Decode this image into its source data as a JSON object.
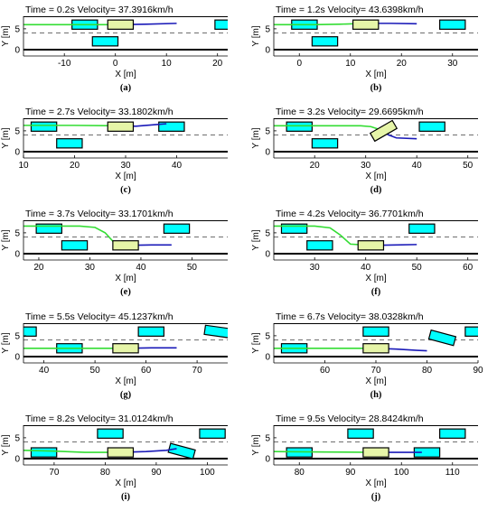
{
  "figure": {
    "y_range": [
      -1.5,
      8
    ],
    "xlabel": "X [m]",
    "ylabel": "Y [m]",
    "y_ticks": [
      0,
      5
    ],
    "road_edges": [
      0,
      8
    ],
    "lane_divider": 4,
    "colors": {
      "road_edge": "#000000",
      "divider": "#808080",
      "obstacle": "#00ffff",
      "ego": "#e6f5a8",
      "past_path": "#33dd33",
      "planned_path": "#1a1ab8"
    }
  },
  "chart_data": [
    {
      "label": "(a)",
      "title": "Time = 0.2s    Velocity= 37.3916km/h",
      "type": "scatter",
      "xlim": [
        -18,
        22
      ],
      "x_ticks": [
        -10,
        0,
        10,
        20
      ],
      "ego": {
        "x": 1,
        "y": 6,
        "angle": 0
      },
      "obstacles": [
        {
          "x": -6,
          "y": 6,
          "angle": 0
        },
        {
          "x": -2,
          "y": 2,
          "angle": 0
        },
        {
          "x": 22,
          "y": 6,
          "angle": 0
        }
      ],
      "past_path": [
        [
          -18,
          6
        ],
        [
          1,
          6
        ]
      ],
      "planned_path": [
        [
          1,
          6
        ],
        [
          6,
          6.1
        ],
        [
          12,
          6.3
        ]
      ]
    },
    {
      "label": "(b)",
      "title": "Time = 1.2s    Velocity= 43.6398km/h",
      "type": "scatter",
      "xlim": [
        -5,
        35
      ],
      "x_ticks": [
        0,
        10,
        20,
        30
      ],
      "ego": {
        "x": 13,
        "y": 6,
        "angle": 0
      },
      "obstacles": [
        {
          "x": 1,
          "y": 6,
          "angle": 0
        },
        {
          "x": 5,
          "y": 2,
          "angle": 0
        },
        {
          "x": 30,
          "y": 6,
          "angle": 0
        }
      ],
      "past_path": [
        [
          -5,
          6
        ],
        [
          3,
          6
        ],
        [
          8,
          6.1
        ],
        [
          13,
          6.3
        ]
      ],
      "planned_path": [
        [
          13,
          6.3
        ],
        [
          18,
          6.3
        ],
        [
          23,
          6.2
        ]
      ]
    },
    {
      "label": "(c)",
      "title": "Time = 2.7s    Velocity= 33.1802km/h",
      "type": "scatter",
      "xlim": [
        10,
        50
      ],
      "x_ticks": [
        10,
        20,
        30,
        40
      ],
      "ego": {
        "x": 29,
        "y": 6,
        "angle": 0
      },
      "obstacles": [
        {
          "x": 14,
          "y": 6,
          "angle": 0
        },
        {
          "x": 19,
          "y": 2,
          "angle": 0
        },
        {
          "x": 39,
          "y": 6,
          "angle": 0
        }
      ],
      "past_path": [
        [
          10,
          6.3
        ],
        [
          20,
          6.3
        ],
        [
          29,
          6.2
        ]
      ],
      "planned_path": [
        [
          29,
          6.2
        ],
        [
          32,
          6.1
        ],
        [
          35,
          6.4
        ],
        [
          38,
          6.7
        ]
      ]
    },
    {
      "label": "(d)",
      "title": "Time = 3.2s    Velocity= 29.6695km/h",
      "type": "scatter",
      "xlim": [
        12,
        52
      ],
      "x_ticks": [
        20,
        30,
        40,
        50
      ],
      "ego": {
        "x": 33.5,
        "y": 5,
        "angle": 30
      },
      "obstacles": [
        {
          "x": 17,
          "y": 6,
          "angle": 0
        },
        {
          "x": 22,
          "y": 2,
          "angle": 0
        },
        {
          "x": 43,
          "y": 6,
          "angle": 0
        }
      ],
      "past_path": [
        [
          12,
          6.2
        ],
        [
          22,
          6.2
        ],
        [
          29,
          6.2
        ],
        [
          31,
          6.0
        ],
        [
          33,
          5.2
        ]
      ],
      "planned_path": [
        [
          33,
          5.2
        ],
        [
          34.5,
          4.0
        ],
        [
          36,
          3.3
        ],
        [
          40,
          3.1
        ]
      ]
    },
    {
      "label": "(e)",
      "title": "Time = 3.7s    Velocity= 33.1701km/h",
      "type": "scatter",
      "xlim": [
        17,
        57
      ],
      "x_ticks": [
        20,
        30,
        40,
        50
      ],
      "ego": {
        "x": 37,
        "y": 2,
        "angle": 0
      },
      "obstacles": [
        {
          "x": 22,
          "y": 6,
          "angle": 0
        },
        {
          "x": 27,
          "y": 2,
          "angle": 0
        },
        {
          "x": 47,
          "y": 6,
          "angle": 0
        }
      ],
      "past_path": [
        [
          17,
          6.6
        ],
        [
          28,
          6.6
        ],
        [
          31,
          6.3
        ],
        [
          33,
          5.0
        ],
        [
          34.5,
          3.0
        ],
        [
          37,
          2.0
        ]
      ],
      "planned_path": [
        [
          37,
          2.0
        ],
        [
          42,
          2.1
        ],
        [
          46,
          2.1
        ]
      ]
    },
    {
      "label": "(f)",
      "title": "Time = 4.2s    Velocity= 36.7701km/h",
      "type": "scatter",
      "xlim": [
        22,
        62
      ],
      "x_ticks": [
        30,
        40,
        50,
        60
      ],
      "ego": {
        "x": 41,
        "y": 2,
        "angle": 0
      },
      "obstacles": [
        {
          "x": 26,
          "y": 6,
          "angle": 0
        },
        {
          "x": 31,
          "y": 2,
          "angle": 0
        },
        {
          "x": 51,
          "y": 6,
          "angle": 0
        }
      ],
      "past_path": [
        [
          22,
          6.6
        ],
        [
          30,
          6.6
        ],
        [
          33,
          6.2
        ],
        [
          35,
          4.5
        ],
        [
          37,
          2.3
        ],
        [
          41,
          2.0
        ]
      ],
      "planned_path": [
        [
          41,
          2.0
        ],
        [
          46,
          2.1
        ],
        [
          50,
          2.2
        ]
      ]
    },
    {
      "label": "(g)",
      "title": "Time = 5.5s    Velocity= 45.1237km/h",
      "type": "scatter",
      "xlim": [
        36,
        76
      ],
      "x_ticks": [
        40,
        50,
        60,
        70
      ],
      "ego": {
        "x": 56,
        "y": 2,
        "angle": 0
      },
      "obstacles": [
        {
          "x": 36,
          "y": 6,
          "angle": 0
        },
        {
          "x": 45,
          "y": 2,
          "angle": 0
        },
        {
          "x": 61,
          "y": 6,
          "angle": 0
        },
        {
          "x": 74,
          "y": 6,
          "angle": -8
        }
      ],
      "past_path": [
        [
          36,
          2.0
        ],
        [
          56,
          2.0
        ]
      ],
      "planned_path": [
        [
          56,
          2.0
        ],
        [
          61,
          2.1
        ],
        [
          66,
          2.1
        ]
      ]
    },
    {
      "label": "(h)",
      "title": "Time = 6.7s    Velocity= 38.0328km/h",
      "type": "scatter",
      "xlim": [
        50,
        90
      ],
      "x_ticks": [
        60,
        70,
        80,
        90
      ],
      "ego": {
        "x": 70,
        "y": 2,
        "angle": 0
      },
      "obstacles": [
        {
          "x": 54,
          "y": 2,
          "angle": 0
        },
        {
          "x": 70,
          "y": 6,
          "angle": 0
        },
        {
          "x": 83,
          "y": 4.5,
          "angle": -15
        },
        {
          "x": 90,
          "y": 6,
          "angle": 0
        }
      ],
      "past_path": [
        [
          50,
          2.0
        ],
        [
          70,
          2.0
        ]
      ],
      "planned_path": [
        [
          70,
          2.0
        ],
        [
          74,
          1.8
        ],
        [
          78,
          1.5
        ],
        [
          80,
          1.4
        ]
      ]
    },
    {
      "label": "(i)",
      "title": "Time = 8.2s    Velocity= 31.0124km/h",
      "type": "scatter",
      "xlim": [
        64,
        104
      ],
      "x_ticks": [
        70,
        80,
        90,
        100
      ],
      "ego": {
        "x": 83,
        "y": 1.5,
        "angle": 0
      },
      "obstacles": [
        {
          "x": 68,
          "y": 1.5,
          "angle": 0
        },
        {
          "x": 81,
          "y": 6,
          "angle": 0
        },
        {
          "x": 95,
          "y": 1.8,
          "angle": -15
        },
        {
          "x": 101,
          "y": 6,
          "angle": 0
        }
      ],
      "past_path": [
        [
          64,
          2.0
        ],
        [
          70,
          1.8
        ],
        [
          76,
          1.5
        ],
        [
          83,
          1.5
        ]
      ],
      "planned_path": [
        [
          83,
          1.5
        ],
        [
          88,
          1.7
        ],
        [
          92,
          2.0
        ],
        [
          94,
          2.4
        ]
      ]
    },
    {
      "label": "(j)",
      "title": "Time = 9.5s    Velocity= 28.8424km/h",
      "type": "scatter",
      "xlim": [
        75,
        115
      ],
      "x_ticks": [
        80,
        90,
        100,
        110
      ],
      "ego": {
        "x": 95,
        "y": 1.5,
        "angle": 0
      },
      "obstacles": [
        {
          "x": 80,
          "y": 1.5,
          "angle": 0
        },
        {
          "x": 92,
          "y": 6,
          "angle": 0
        },
        {
          "x": 105,
          "y": 1.5,
          "angle": 0
        },
        {
          "x": 110,
          "y": 6,
          "angle": 0
        }
      ],
      "past_path": [
        [
          75,
          1.7
        ],
        [
          85,
          1.6
        ],
        [
          95,
          1.5
        ]
      ],
      "planned_path": [
        [
          95,
          1.5
        ],
        [
          100,
          1.5
        ],
        [
          104,
          1.5
        ]
      ]
    }
  ]
}
